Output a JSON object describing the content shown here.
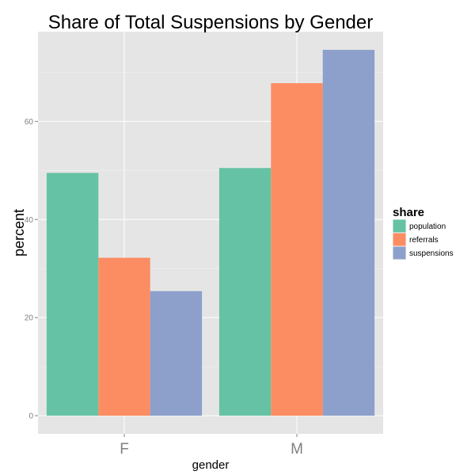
{
  "chart_data": {
    "type": "bar",
    "title": "Share of Total Suspensions by Gender",
    "xlabel": "gender",
    "ylabel": "percent",
    "categories": [
      "F",
      "M"
    ],
    "series": [
      {
        "name": "population",
        "values": [
          49.5,
          50.5
        ],
        "color": "#66c2a5"
      },
      {
        "name": "referrals",
        "values": [
          32.2,
          67.8
        ],
        "color": "#fc8d62"
      },
      {
        "name": "suspensions",
        "values": [
          25.4,
          74.6
        ],
        "color": "#8da0cb"
      }
    ],
    "yticks": [
      0,
      20,
      40,
      60
    ],
    "ylim": [
      -3.7,
      78.3
    ],
    "grid": true,
    "panel_background": "#e5e5e5",
    "legend": {
      "title": "share",
      "placement": "right"
    }
  }
}
